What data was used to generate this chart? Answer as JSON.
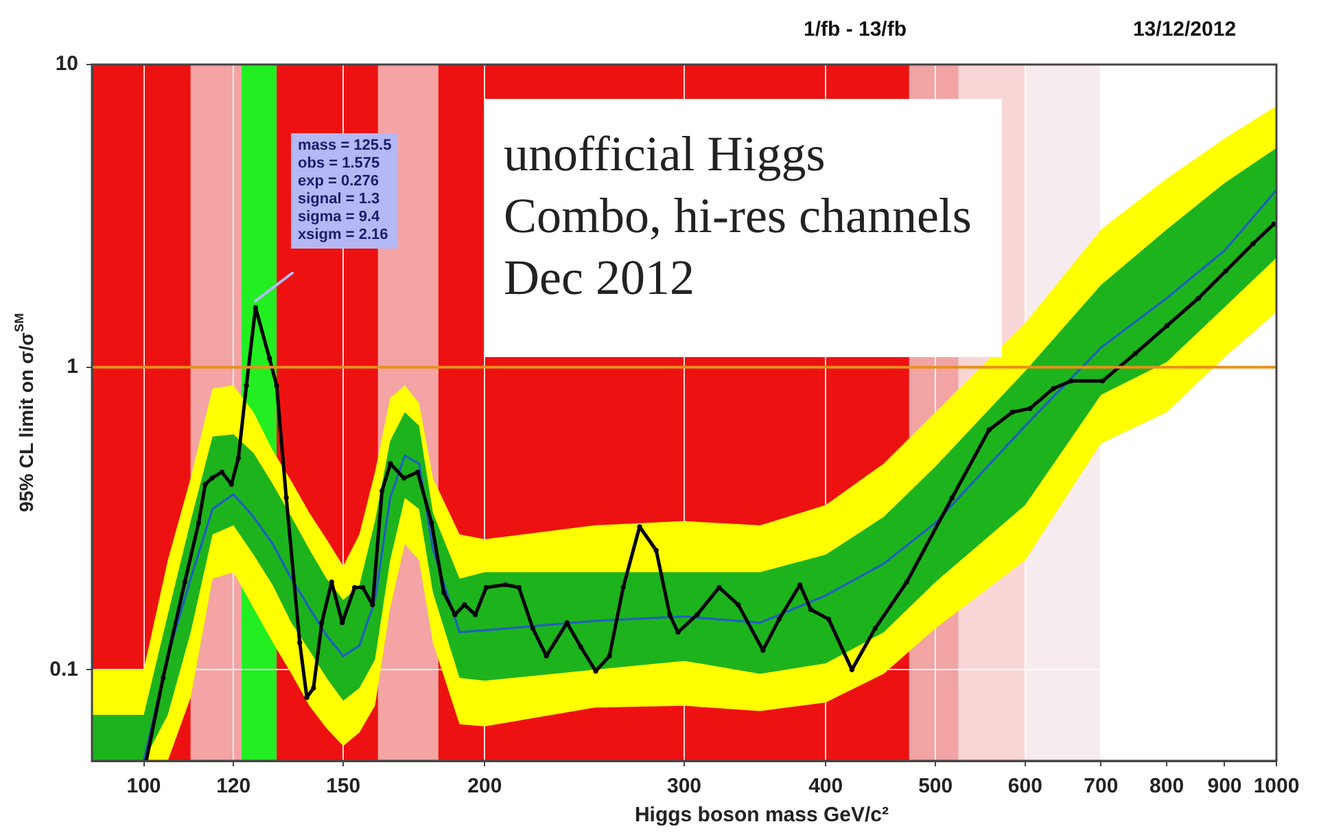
{
  "chart_data": {
    "type": "line",
    "xlabel": "Higgs boson mass GeV/c²",
    "ylabel": "95% CL limit on σ/σ$^{SM}$",
    "x": [
      90,
      100,
      105,
      110,
      115,
      120,
      125,
      130,
      135,
      140,
      145,
      150,
      155,
      160,
      165,
      170,
      175,
      180,
      190,
      200,
      250,
      300,
      350,
      400,
      450,
      500,
      600,
      700,
      800,
      900,
      1000
    ],
    "series": [
      {
        "type": "line",
        "color": "#ffff00",
        "values": [
          null,
          null,
          null,
          null,
          null,
          null,
          null,
          null,
          null,
          null,
          null,
          null,
          null,
          null,
          null,
          null,
          null,
          null,
          null,
          null,
          null,
          null,
          null,
          null,
          null,
          null,
          null,
          null,
          null,
          null,
          null
        ],
        "upper": [
          0.1,
          0.1,
          0.23,
          0.43,
          0.85,
          0.87,
          0.71,
          0.53,
          0.42,
          0.33,
          0.27,
          0.22,
          0.28,
          0.45,
          0.79,
          0.87,
          0.76,
          0.43,
          0.28,
          0.27,
          0.3,
          0.31,
          0.3,
          0.35,
          0.48,
          0.71,
          1.4,
          2.85,
          4.2,
          5.7,
          7.3
        ],
        "lower": [
          0.05,
          0.05,
          0.05,
          0.081,
          0.2,
          0.21,
          0.16,
          0.123,
          0.097,
          0.076,
          0.064,
          0.056,
          0.062,
          0.076,
          0.16,
          0.26,
          0.23,
          0.123,
          0.066,
          0.065,
          0.075,
          0.076,
          0.073,
          0.078,
          0.097,
          0.137,
          0.23,
          0.56,
          0.71,
          1.08,
          1.52
        ]
      },
      {
        "type": "line",
        "color": "#1db31d",
        "values": [
          null,
          null,
          null,
          null,
          null,
          null,
          null,
          null,
          null,
          null,
          null,
          null,
          null,
          null,
          null,
          null,
          null,
          null,
          null,
          null,
          null,
          null,
          null,
          null,
          null,
          null,
          null,
          null,
          null,
          null,
          null
        ],
        "upper": [
          0.071,
          0.071,
          0.152,
          0.31,
          0.59,
          0.6,
          0.52,
          0.41,
          0.32,
          0.25,
          0.2,
          0.17,
          0.19,
          0.31,
          0.57,
          0.71,
          0.64,
          0.33,
          0.2,
          0.21,
          0.21,
          0.21,
          0.21,
          0.24,
          0.32,
          0.47,
          0.97,
          1.87,
          2.85,
          4.06,
          5.3
        ],
        "lower": [
          0.05,
          0.05,
          0.071,
          0.133,
          0.28,
          0.3,
          0.24,
          0.19,
          0.143,
          0.116,
          0.094,
          0.079,
          0.087,
          0.108,
          0.23,
          0.37,
          0.34,
          0.18,
          0.094,
          0.092,
          0.1,
          0.107,
          0.097,
          0.105,
          0.133,
          0.195,
          0.35,
          0.81,
          1.04,
          1.58,
          2.3
        ]
      },
      {
        "type": "line",
        "color": "#1f5fc0",
        "values": [
          null,
          0.05,
          0.111,
          0.2,
          0.34,
          0.38,
          0.32,
          0.26,
          0.2,
          0.16,
          0.13,
          0.111,
          0.12,
          0.17,
          0.37,
          0.51,
          0.48,
          0.25,
          0.133,
          0.135,
          0.145,
          0.15,
          0.143,
          0.176,
          0.224,
          0.306,
          0.64,
          1.16,
          1.69,
          2.43,
          3.85
        ]
      },
      {
        "color": "#000000",
        "marker": "circle",
        "x": [
          100.5,
          104,
          108.7,
          111.8,
          113.3,
          114.9,
          117.2,
          119.5,
          121.2,
          123.2,
          125.5,
          129.1,
          131,
          133.6,
          137.3,
          139.3,
          141.2,
          143.6,
          146.5,
          149.7,
          153.5,
          156.1,
          159.2,
          162.3,
          165.1,
          169.7,
          174.5,
          179.5,
          184,
          188.2,
          191.9,
          196.2,
          200.6,
          208.5,
          214.4,
          220.5,
          226.7,
          236.4,
          243.1,
          250.6,
          257.7,
          265,
          274,
          283.4,
          291.3,
          296.2,
          308,
          322.1,
          334.8,
          352.1,
          363.9,
          379.6,
          388.1,
          402.4,
          421.9,
          442.3,
          471.7,
          517.1,
          557.5,
          584.5,
          605.9,
          635.3,
          658.6,
          702.3,
          750.8,
          800.5,
          853.4,
          902.3,
          953.7,
          994.5
        ],
        "values": [
          0.05,
          0.094,
          0.195,
          0.306,
          0.41,
          0.43,
          0.45,
          0.41,
          0.5,
          0.87,
          1.575,
          1.07,
          0.87,
          0.37,
          0.123,
          0.081,
          0.087,
          0.143,
          0.195,
          0.143,
          0.187,
          0.187,
          0.164,
          0.39,
          0.48,
          0.43,
          0.45,
          0.306,
          0.18,
          0.152,
          0.164,
          0.152,
          0.187,
          0.191,
          0.187,
          0.137,
          0.111,
          0.143,
          0.119,
          0.099,
          0.111,
          0.187,
          0.297,
          0.248,
          0.152,
          0.133,
          0.152,
          0.187,
          0.164,
          0.116,
          0.147,
          0.191,
          0.158,
          0.147,
          0.1,
          0.137,
          0.195,
          0.37,
          0.62,
          0.71,
          0.73,
          0.85,
          0.9,
          0.9,
          1.11,
          1.37,
          1.69,
          2.08,
          2.56,
          2.97
        ]
      }
    ],
    "xlim": [
      90,
      1000
    ],
    "ylim": [
      0.05,
      10
    ],
    "xticks": [
      100,
      120,
      150,
      200,
      300,
      400,
      500,
      600,
      700,
      800,
      900,
      1000
    ],
    "yticks": [
      0.1,
      1,
      10
    ],
    "log": "xy",
    "grid": true,
    "legend": false,
    "ref_lines": [
      {
        "axis": "y",
        "value": 1,
        "color": "#e8901c"
      }
    ],
    "bands": [
      {
        "axis": "x",
        "from": 90,
        "to": 110,
        "color": "#ee1111"
      },
      {
        "axis": "x",
        "from": 110,
        "to": 122,
        "color": "#f4a4a4"
      },
      {
        "axis": "x",
        "from": 122,
        "to": 131,
        "color": "#22ee22"
      },
      {
        "axis": "x",
        "from": 131,
        "to": 161,
        "color": "#ee1111"
      },
      {
        "axis": "x",
        "from": 161,
        "to": 182,
        "color": "#f4a4a4"
      },
      {
        "axis": "x",
        "from": 182,
        "to": 474,
        "color": "#ee1111"
      },
      {
        "axis": "x",
        "from": 474,
        "to": 524,
        "color": "#f2a4a4"
      },
      {
        "axis": "x",
        "from": 524,
        "to": 600,
        "color": "#f9d6d6"
      },
      {
        "axis": "x",
        "from": 600,
        "to": 700,
        "color": "#f6ecf0"
      }
    ],
    "annotations": [
      "1/fb - 13/fb",
      "13/12/2012",
      "unofficial Higgs Combo, hi-res channels Dec 2012",
      "mass = 125.5\nobs = 1.575\nexp = 0.276\nsignal = 1.3\nsigma = 9.4\nxsigm = 2.16"
    ]
  }
}
